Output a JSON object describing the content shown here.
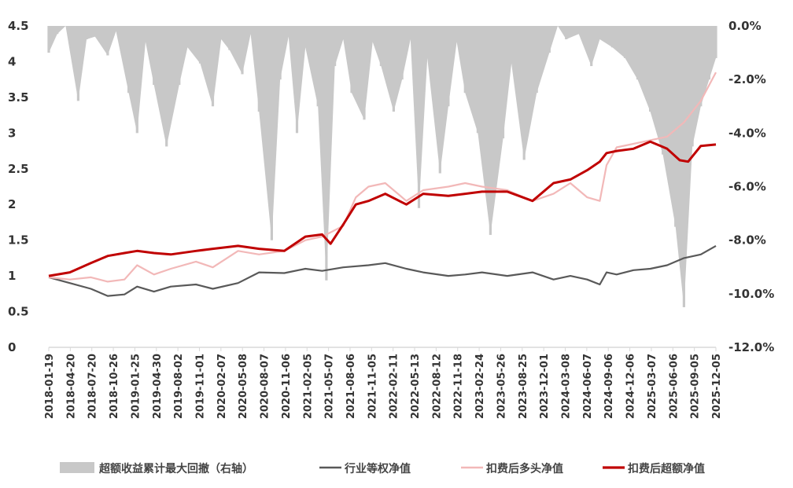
{
  "colors": {
    "drawdown": "#c8c8c8",
    "industry": "#595959",
    "long": "#f2b8b8",
    "excess": "#c00000",
    "text": "#333333",
    "axis": "#d9d9d9"
  },
  "chart_data": {
    "type": "line",
    "title": "",
    "xlabel": "",
    "ylabel": "",
    "y_left_ticks": [
      "4.5",
      "4",
      "3.5",
      "3",
      "2.5",
      "2",
      "1.5",
      "1",
      "0.5",
      "0"
    ],
    "y_left_range": [
      0,
      4.5
    ],
    "y_right_ticks": [
      "0.0%",
      "-2.0%",
      "-4.0%",
      "-6.0%",
      "-8.0%",
      "-10.0%",
      "-12.0%"
    ],
    "y_right_range": [
      -12.0,
      0.0
    ],
    "x_tick_labels": [
      "2018-01-19",
      "2018-04-20",
      "2018-07-20",
      "2018-10-26",
      "2019-01-25",
      "2019-04-30",
      "2019-08-02",
      "2019-11-01",
      "2020-02-07",
      "2020-05-08",
      "2020-08-07",
      "2020-11-06",
      "2021-02-05",
      "2021-05-07",
      "2021-08-06",
      "2021-11-05",
      "2022-02-11",
      "2022-05-13",
      "2022-08-12",
      "2022-11-18",
      "2023-02-24",
      "2023-05-26",
      "2023-08-25",
      "2023-12-01",
      "2024-03-08",
      "2024-06-07",
      "2024-09-06",
      "2024-12-06",
      "2025-03-07",
      "2025-06-06",
      "2025-09-05",
      "2025-12-05"
    ],
    "grid": false,
    "legend_position": "bottom",
    "legend": [
      "超额收益累计最大回撤（右轴）",
      "行业等权净值",
      "扣费后多头净值",
      "扣费后超额净值"
    ],
    "series": [
      {
        "name": "超额收益累计最大回撤（右轴）",
        "type": "area",
        "axis": "right",
        "x": [
          2018.05,
          2018.15,
          2018.25,
          2018.4,
          2018.5,
          2018.6,
          2018.75,
          2018.85,
          2019.0,
          2019.1,
          2019.2,
          2019.3,
          2019.45,
          2019.6,
          2019.7,
          2019.85,
          2020.0,
          2020.1,
          2020.2,
          2020.35,
          2020.45,
          2020.55,
          2020.7,
          2020.8,
          2020.9,
          2021.0,
          2021.1,
          2021.25,
          2021.35,
          2021.45,
          2021.55,
          2021.65,
          2021.8,
          2021.9,
          2022.0,
          2022.15,
          2022.25,
          2022.35,
          2022.45,
          2022.55,
          2022.7,
          2022.8,
          2022.9,
          2023.0,
          2023.15,
          2023.3,
          2023.45,
          2023.55,
          2023.7,
          2023.85,
          2024.0,
          2024.1,
          2024.2,
          2024.35,
          2024.5,
          2024.6,
          2024.75,
          2024.9,
          2025.05,
          2025.2,
          2025.35,
          2025.5,
          2025.6,
          2025.7,
          2025.8,
          2025.9,
          2025.98
        ],
        "values": [
          -1.0,
          -0.3,
          0,
          -2.8,
          -0.5,
          -0.4,
          -1.1,
          -0.2,
          -2.5,
          -4.0,
          -0.6,
          -2.2,
          -4.5,
          -2.2,
          -0.8,
          -1.4,
          -3.0,
          -0.5,
          -0.9,
          -1.8,
          -0.3,
          -3.2,
          -8.0,
          -2.0,
          -0.4,
          -4.0,
          -0.8,
          -3.0,
          -9.5,
          -1.5,
          -0.5,
          -2.5,
          -3.5,
          -0.6,
          -1.5,
          -3.2,
          -2.0,
          -0.5,
          -6.8,
          -1.2,
          -5.5,
          -3.0,
          -0.6,
          -2.5,
          -4.0,
          -7.8,
          -4.2,
          -1.4,
          -5.0,
          -2.5,
          -1.0,
          0,
          -0.5,
          -0.3,
          -1.5,
          -0.5,
          -0.8,
          -1.2,
          -2.0,
          -3.2,
          -4.8,
          -7.5,
          -10.5,
          -4.5,
          -3.0,
          -2.0,
          -1.2
        ]
      },
      {
        "name": "行业等权净值",
        "type": "line",
        "axis": "left",
        "x": [
          2018.05,
          2018.3,
          2018.55,
          2018.75,
          2018.95,
          2019.1,
          2019.3,
          2019.5,
          2019.8,
          2020.0,
          2020.3,
          2020.55,
          2020.85,
          2021.1,
          2021.3,
          2021.55,
          2021.85,
          2022.05,
          2022.3,
          2022.5,
          2022.8,
          2023.0,
          2023.2,
          2023.5,
          2023.8,
          2024.05,
          2024.25,
          2024.45,
          2024.6,
          2024.68,
          2024.8,
          2025.0,
          2025.2,
          2025.4,
          2025.6,
          2025.8,
          2025.98
        ],
        "values": [
          0.98,
          0.9,
          0.82,
          0.72,
          0.74,
          0.85,
          0.78,
          0.85,
          0.88,
          0.82,
          0.9,
          1.05,
          1.04,
          1.1,
          1.07,
          1.12,
          1.15,
          1.18,
          1.1,
          1.05,
          1.0,
          1.02,
          1.05,
          1.0,
          1.05,
          0.95,
          1.0,
          0.95,
          0.88,
          1.05,
          1.02,
          1.08,
          1.1,
          1.15,
          1.25,
          1.3,
          1.42
        ]
      },
      {
        "name": "扣费后多头净值",
        "type": "line",
        "axis": "left",
        "x": [
          2018.05,
          2018.3,
          2018.55,
          2018.75,
          2018.95,
          2019.1,
          2019.3,
          2019.5,
          2019.8,
          2020.0,
          2020.3,
          2020.55,
          2020.85,
          2021.1,
          2021.3,
          2021.55,
          2021.7,
          2021.85,
          2022.05,
          2022.3,
          2022.5,
          2022.8,
          2023.0,
          2023.2,
          2023.5,
          2023.8,
          2024.05,
          2024.25,
          2024.45,
          2024.6,
          2024.68,
          2024.8,
          2025.0,
          2025.2,
          2025.4,
          2025.6,
          2025.8,
          2025.98
        ],
        "values": [
          0.98,
          0.95,
          0.98,
          0.92,
          0.95,
          1.15,
          1.02,
          1.1,
          1.2,
          1.12,
          1.35,
          1.3,
          1.35,
          1.5,
          1.55,
          1.7,
          2.1,
          2.25,
          2.3,
          2.05,
          2.2,
          2.25,
          2.3,
          2.25,
          2.2,
          2.05,
          2.15,
          2.3,
          2.1,
          2.05,
          2.55,
          2.8,
          2.85,
          2.9,
          2.95,
          3.15,
          3.45,
          3.85
        ]
      },
      {
        "name": "扣费后超额净值",
        "type": "line",
        "axis": "left",
        "x": [
          2018.05,
          2018.3,
          2018.55,
          2018.75,
          2018.95,
          2019.1,
          2019.3,
          2019.5,
          2019.8,
          2020.0,
          2020.3,
          2020.55,
          2020.85,
          2021.1,
          2021.3,
          2021.4,
          2021.55,
          2021.7,
          2021.85,
          2022.05,
          2022.3,
          2022.5,
          2022.8,
          2023.0,
          2023.2,
          2023.5,
          2023.8,
          2024.05,
          2024.25,
          2024.45,
          2024.6,
          2024.68,
          2024.8,
          2025.0,
          2025.2,
          2025.4,
          2025.55,
          2025.65,
          2025.8,
          2025.98
        ],
        "values": [
          1.0,
          1.05,
          1.18,
          1.28,
          1.32,
          1.35,
          1.32,
          1.3,
          1.35,
          1.38,
          1.42,
          1.38,
          1.35,
          1.55,
          1.58,
          1.45,
          1.72,
          2.0,
          2.05,
          2.15,
          2.0,
          2.15,
          2.12,
          2.15,
          2.18,
          2.18,
          2.05,
          2.3,
          2.35,
          2.48,
          2.6,
          2.72,
          2.75,
          2.78,
          2.88,
          2.78,
          2.62,
          2.6,
          2.82,
          2.84
        ]
      }
    ]
  }
}
